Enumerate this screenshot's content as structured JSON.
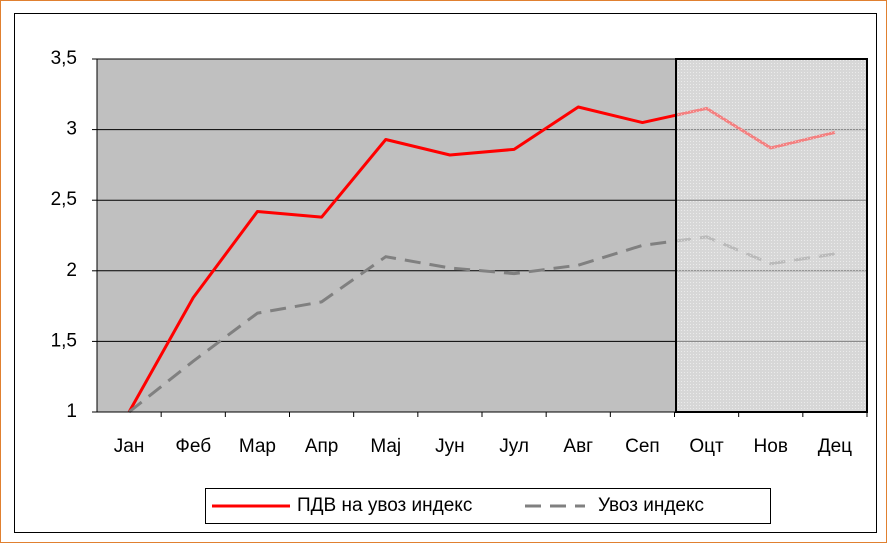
{
  "chart_data": {
    "type": "line",
    "categories": [
      "Јан",
      "Феб",
      "Мар",
      "Апр",
      "Мај",
      "Јун",
      "Јул",
      "Авг",
      "Сеп",
      "Оцт",
      "Нов",
      "Дец"
    ],
    "series": [
      {
        "name": "ПДВ на увоз индекс",
        "color": "#ff0000",
        "values": [
          1,
          1.81,
          2.42,
          2.38,
          2.93,
          2.82,
          2.86,
          3.16,
          3.05,
          3.15,
          2.87,
          2.98
        ]
      },
      {
        "name": "Увоз индекс",
        "color": "#808080",
        "dashed": true,
        "values": [
          1,
          1.36,
          1.7,
          1.78,
          2.1,
          2.02,
          1.98,
          2.04,
          2.18,
          2.24,
          2.05,
          2.12
        ]
      }
    ],
    "ylim": [
      1,
      3.5
    ],
    "yticks": [
      1,
      {
        "value": 1.5,
        "label": "1,5"
      },
      2,
      {
        "value": 2.5,
        "label": "2,5"
      },
      3,
      {
        "value": 3.5,
        "label": "3,5"
      }
    ],
    "grid": true,
    "legend": "bottom"
  }
}
